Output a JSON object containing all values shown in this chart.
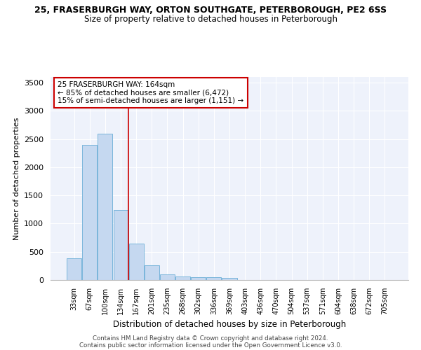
{
  "title_line1": "25, FRASERBURGH WAY, ORTON SOUTHGATE, PETERBOROUGH, PE2 6SS",
  "title_line2": "Size of property relative to detached houses in Peterborough",
  "xlabel": "Distribution of detached houses by size in Peterborough",
  "ylabel": "Number of detached properties",
  "categories": [
    "33sqm",
    "67sqm",
    "100sqm",
    "134sqm",
    "167sqm",
    "201sqm",
    "235sqm",
    "268sqm",
    "302sqm",
    "336sqm",
    "369sqm",
    "403sqm",
    "436sqm",
    "470sqm",
    "504sqm",
    "537sqm",
    "571sqm",
    "604sqm",
    "638sqm",
    "672sqm",
    "705sqm"
  ],
  "values": [
    390,
    2400,
    2600,
    1240,
    640,
    255,
    100,
    60,
    55,
    45,
    35,
    0,
    0,
    0,
    0,
    0,
    0,
    0,
    0,
    0,
    0
  ],
  "bar_color": "#c5d8f0",
  "bar_edge_color": "#6baed6",
  "red_line_index": 4,
  "annotation_text_line1": "25 FRASERBURGH WAY: 164sqm",
  "annotation_text_line2": "← 85% of detached houses are smaller (6,472)",
  "annotation_text_line3": "15% of semi-detached houses are larger (1,151) →",
  "annotation_box_color": "#ffffff",
  "annotation_box_edge": "#cc0000",
  "red_line_color": "#cc0000",
  "background_color": "#eef2fb",
  "grid_color": "#ffffff",
  "footer_line1": "Contains HM Land Registry data © Crown copyright and database right 2024.",
  "footer_line2": "Contains public sector information licensed under the Open Government Licence v3.0.",
  "ylim": [
    0,
    3600
  ],
  "yticks": [
    0,
    500,
    1000,
    1500,
    2000,
    2500,
    3000,
    3500
  ]
}
